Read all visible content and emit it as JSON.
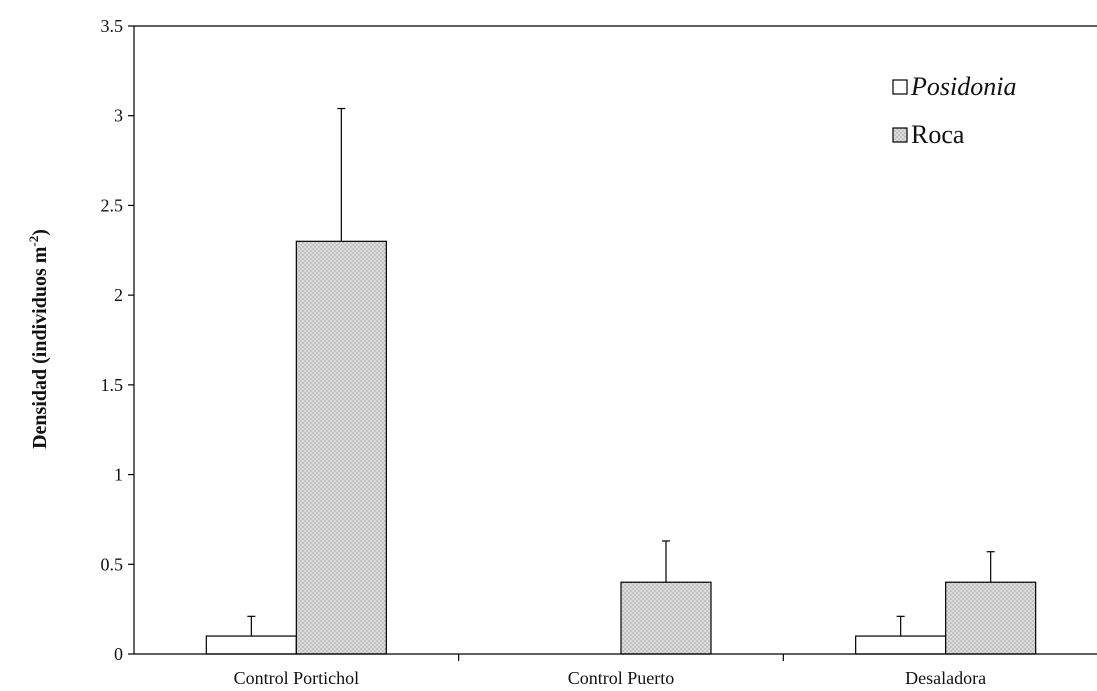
{
  "chart_data": {
    "type": "bar",
    "categories": [
      "Control Portichol",
      "Control Puerto",
      "Desaladora"
    ],
    "series": [
      {
        "name": "Posidonia",
        "values": [
          0.1,
          0,
          0.1
        ],
        "errors": [
          0.11,
          0,
          0.11
        ],
        "color": "#ffffff"
      },
      {
        "name": "Roca",
        "values": [
          2.3,
          0.4,
          0.4
        ],
        "errors": [
          0.74,
          0.23,
          0.17
        ],
        "color": "#d9d9d9"
      }
    ],
    "title": "",
    "xlabel": "",
    "ylabel": {
      "prefix": "Densidad (individuos m",
      "superscript": "-2",
      "suffix": ")"
    },
    "ylim": [
      0,
      3.5
    ],
    "yticks": [
      "0",
      "0.5",
      "1",
      "1.5",
      "2",
      "2.5",
      "3",
      "3.5"
    ],
    "grid": false,
    "legend_position": "top-right"
  }
}
